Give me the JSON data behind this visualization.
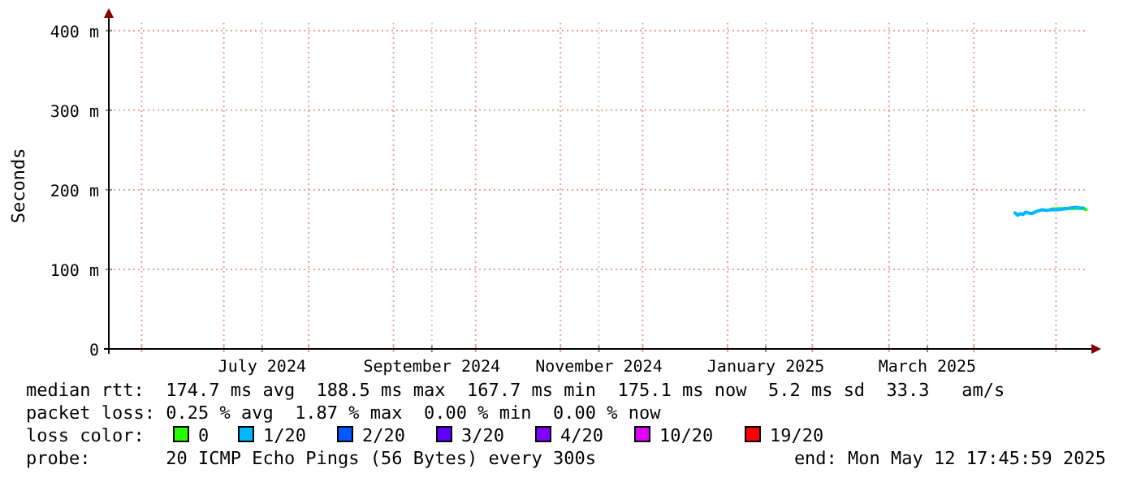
{
  "chart_data": {
    "type": "line",
    "ylabel": "Seconds",
    "xlim": [
      "2024-05-20",
      "2025-05-12T17:45"
    ],
    "ylim": [
      0,
      410
    ],
    "xticks": [
      {
        "value": "2024-06-01",
        "label": null
      },
      {
        "value": "2024-07-01",
        "label": null
      },
      {
        "value": "2024-07-15",
        "label": "July 2024"
      },
      {
        "value": "2024-08-01",
        "label": null
      },
      {
        "value": "2024-09-01",
        "label": null
      },
      {
        "value": "2024-09-15",
        "label": "September 2024"
      },
      {
        "value": "2024-10-01",
        "label": null
      },
      {
        "value": "2024-11-01",
        "label": null
      },
      {
        "value": "2024-11-15",
        "label": "November 2024"
      },
      {
        "value": "2024-12-01",
        "label": null
      },
      {
        "value": "2025-01-01",
        "label": null
      },
      {
        "value": "2025-01-15",
        "label": "January 2025"
      },
      {
        "value": "2025-02-01",
        "label": null
      },
      {
        "value": "2025-03-01",
        "label": null
      },
      {
        "value": "2025-03-15",
        "label": "March 2025"
      },
      {
        "value": "2025-04-01",
        "label": null
      },
      {
        "value": "2025-05-01",
        "label": null
      }
    ],
    "yticks": [
      0,
      {
        "value": 100,
        "label": "100 m"
      },
      {
        "value": 200,
        "label": "200 m"
      },
      {
        "value": 300,
        "label": "300 m"
      },
      {
        "value": 400,
        "label": "400 m"
      }
    ],
    "grid": true,
    "legend": "bottom",
    "legend_title": "loss color:",
    "line_style": "solid",
    "marker": "none",
    "series": [
      {
        "name": "0",
        "color": "#26ff00",
        "x": [
          "2025-04-29",
          "2025-04-30",
          "2025-05-11",
          "2025-05-12"
        ],
        "values": [
          175,
          176,
          177,
          175
        ]
      },
      {
        "name": "1/20",
        "color": "#00b8ff",
        "x": [
          "2025-04-16",
          "2025-04-17",
          "2025-04-18",
          "2025-04-19",
          "2025-04-20",
          "2025-04-22",
          "2025-04-24",
          "2025-04-26",
          "2025-04-28",
          "2025-04-29",
          "2025-05-02",
          "2025-05-04",
          "2025-05-06",
          "2025-05-08",
          "2025-05-10",
          "2025-05-11"
        ],
        "values": [
          171,
          168,
          170,
          169,
          172,
          170,
          173,
          175,
          174,
          175,
          175,
          176,
          177,
          178,
          177,
          177
        ]
      },
      {
        "name": "2/20",
        "color": "#0059ff"
      },
      {
        "name": "3/20",
        "color": "#5e00ff"
      },
      {
        "name": "4/20",
        "color": "#7e00ff"
      },
      {
        "name": "10/20",
        "color": "#dd00ff"
      },
      {
        "name": "19/20",
        "color": "#ff0000"
      }
    ],
    "annotations": [
      "median rtt:  174.7 ms avg  188.5 ms max  167.7 ms min  175.1 ms now  5.2 ms sd  33.3   am/s",
      "packet loss: 0.25 % avg  1.87 % max  0.00 % min  0.00 % now",
      "probe:       20 ICMP Echo Pings (56 Bytes) every 300s",
      "end: Mon May 12 17:45:59 2025"
    ]
  }
}
